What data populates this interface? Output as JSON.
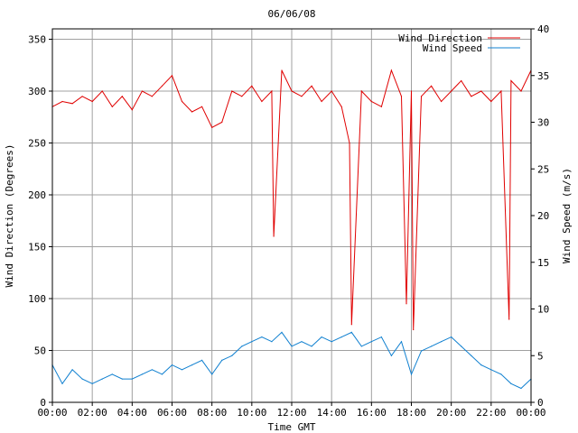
{
  "chart_data": {
    "type": "line",
    "title": "06/06/08",
    "xlabel": "Time GMT",
    "ylabel_left": "Wind Direction (Degrees)",
    "ylabel_right": "Wind Speed (m/s)",
    "x_ticks": [
      "00:00",
      "02:00",
      "04:00",
      "06:00",
      "08:00",
      "10:00",
      "12:00",
      "14:00",
      "16:00",
      "18:00",
      "20:00",
      "22:00",
      "00:00"
    ],
    "xlim_hours": [
      0,
      24
    ],
    "ylim_left": [
      0,
      360
    ],
    "yticks_left": [
      0,
      50,
      100,
      150,
      200,
      250,
      300,
      350
    ],
    "ylim_right": [
      0,
      40
    ],
    "yticks_right": [
      0,
      5,
      10,
      15,
      20,
      25,
      30,
      35,
      40
    ],
    "grid": true,
    "legend_position": "top-right",
    "series": [
      {
        "name": "Wind Direction",
        "axis": "left",
        "color": "#e00000",
        "x_hours": [
          0,
          0.5,
          1,
          1.5,
          2,
          2.5,
          3,
          3.5,
          4,
          4.5,
          5,
          5.5,
          6,
          6.5,
          7,
          7.5,
          8,
          8.5,
          9,
          9.5,
          10,
          10.5,
          11,
          11.1,
          11.5,
          12,
          12.5,
          13,
          13.5,
          14,
          14.5,
          14.9,
          15,
          15.5,
          16,
          16.5,
          17,
          17.5,
          17.75,
          18,
          18.1,
          18.5,
          19,
          19.5,
          20,
          20.5,
          21,
          21.5,
          22,
          22.5,
          22.9,
          23,
          23.5,
          24
        ],
        "values": [
          285,
          290,
          288,
          295,
          290,
          300,
          285,
          295,
          282,
          300,
          295,
          305,
          315,
          290,
          280,
          285,
          265,
          270,
          300,
          295,
          305,
          290,
          300,
          160,
          320,
          300,
          295,
          305,
          290,
          300,
          285,
          250,
          75,
          300,
          290,
          285,
          320,
          295,
          95,
          300,
          70,
          295,
          305,
          290,
          300,
          310,
          295,
          300,
          290,
          300,
          80,
          310,
          300,
          320
        ]
      },
      {
        "name": "Wind Speed",
        "axis": "right",
        "color": "#1080d0",
        "x_hours": [
          0,
          0.5,
          1,
          1.5,
          2,
          2.5,
          3,
          3.5,
          4,
          4.5,
          5,
          5.5,
          6,
          6.5,
          7,
          7.5,
          8,
          8.5,
          9,
          9.5,
          10,
          10.5,
          11,
          11.5,
          12,
          12.5,
          13,
          13.5,
          14,
          14.5,
          15,
          15.5,
          16,
          16.5,
          17,
          17.5,
          18,
          18.5,
          19,
          19.5,
          20,
          20.5,
          21,
          21.5,
          22,
          22.5,
          23,
          23.5,
          24
        ],
        "values": [
          4,
          2,
          3.5,
          2.5,
          2,
          2.5,
          3,
          2.5,
          2.5,
          3,
          3.5,
          3,
          4,
          3.5,
          4,
          4.5,
          3,
          4.5,
          5,
          6,
          6.5,
          7,
          6.5,
          7.5,
          6,
          6.5,
          6,
          7,
          6.5,
          7,
          7.5,
          6,
          6.5,
          7,
          5,
          6.5,
          3,
          5.5,
          6,
          6.5,
          7,
          6,
          5,
          4,
          3.5,
          3,
          2,
          1.5,
          2.5
        ]
      }
    ]
  }
}
